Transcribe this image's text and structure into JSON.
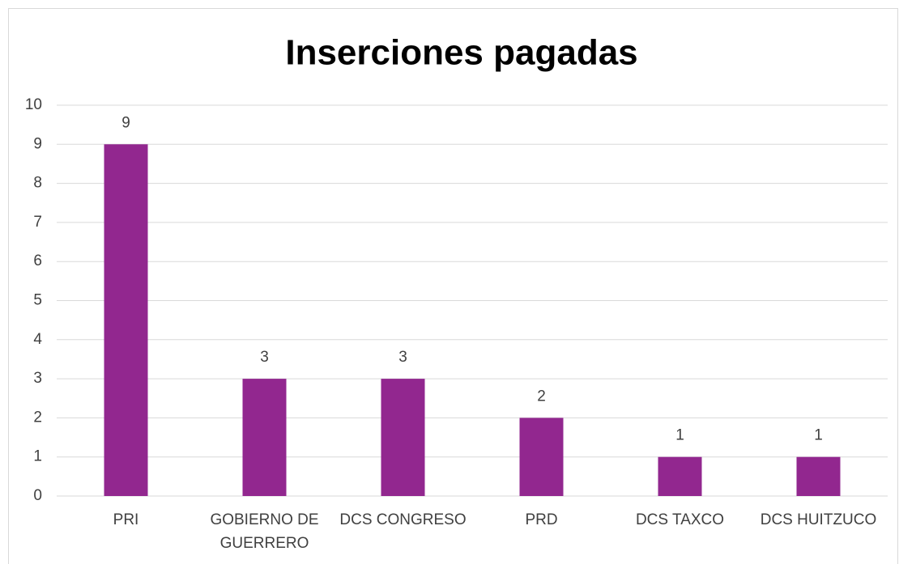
{
  "chart_data": {
    "type": "bar",
    "title": "Inserciones pagadas",
    "categories": [
      "PRI",
      "GOBIERNO DE GUERRERO",
      "DCS CONGRESO",
      "PRD",
      "DCS TAXCO",
      "DCS HUITZUCO"
    ],
    "values": [
      9,
      3,
      3,
      2,
      1,
      1
    ],
    "color": "#92278f",
    "ylim": [
      0,
      10
    ],
    "yticks": [
      0,
      1,
      2,
      3,
      4,
      5,
      6,
      7,
      8,
      9,
      10
    ],
    "grid": true
  }
}
